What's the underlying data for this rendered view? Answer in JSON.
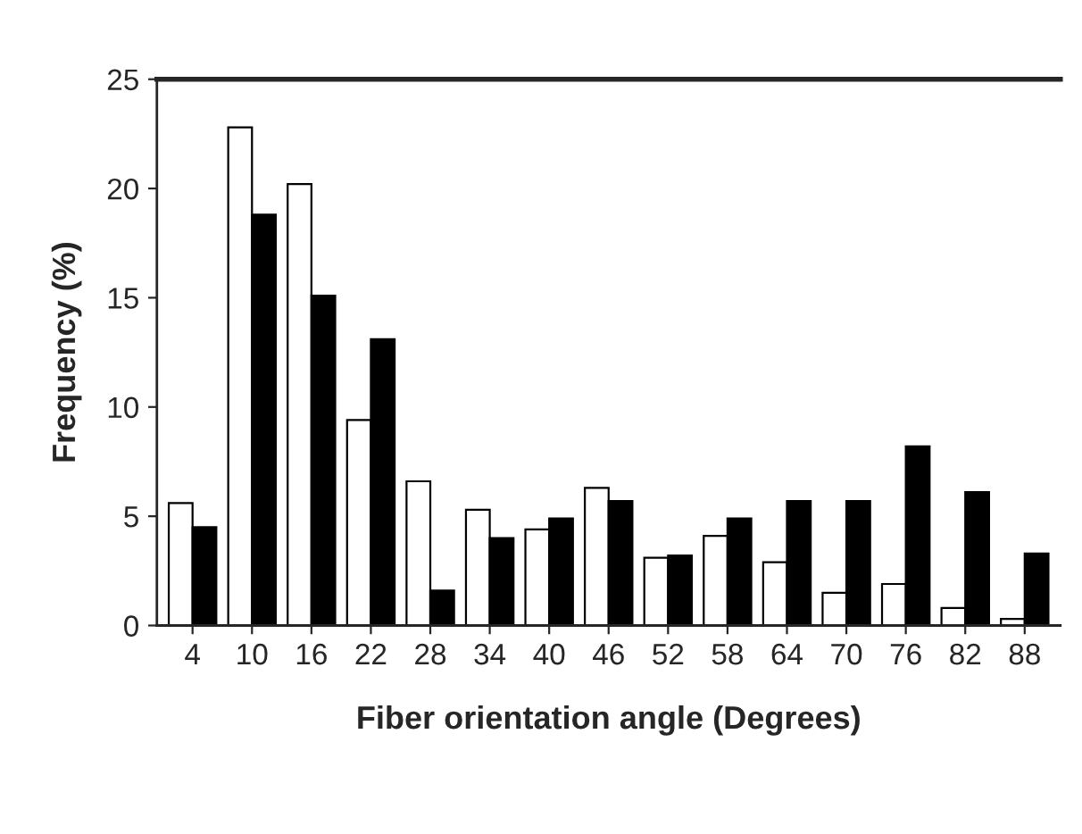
{
  "chart_data": {
    "type": "bar",
    "xlabel": "Fiber orientation angle (Degrees)",
    "ylabel": "Frequency (%)",
    "categories": [
      "4",
      "10",
      "16",
      "22",
      "28",
      "34",
      "40",
      "46",
      "52",
      "58",
      "64",
      "70",
      "76",
      "82",
      "88"
    ],
    "series": [
      {
        "color": "#ffffff",
        "values": [
          5.6,
          22.8,
          20.2,
          9.4,
          6.6,
          5.3,
          4.4,
          6.3,
          3.1,
          4.1,
          2.9,
          1.5,
          1.9,
          0.8,
          0.3
        ]
      },
      {
        "color": "#000000",
        "values": [
          4.5,
          18.8,
          15.1,
          13.1,
          1.6,
          4.0,
          4.9,
          5.7,
          3.2,
          4.9,
          5.7,
          5.7,
          8.2,
          6.1,
          3.3
        ]
      }
    ],
    "ylim": [
      0,
      25
    ],
    "yticks": [
      0,
      5,
      10,
      15,
      20,
      25
    ],
    "grid": false,
    "legend": false
  }
}
